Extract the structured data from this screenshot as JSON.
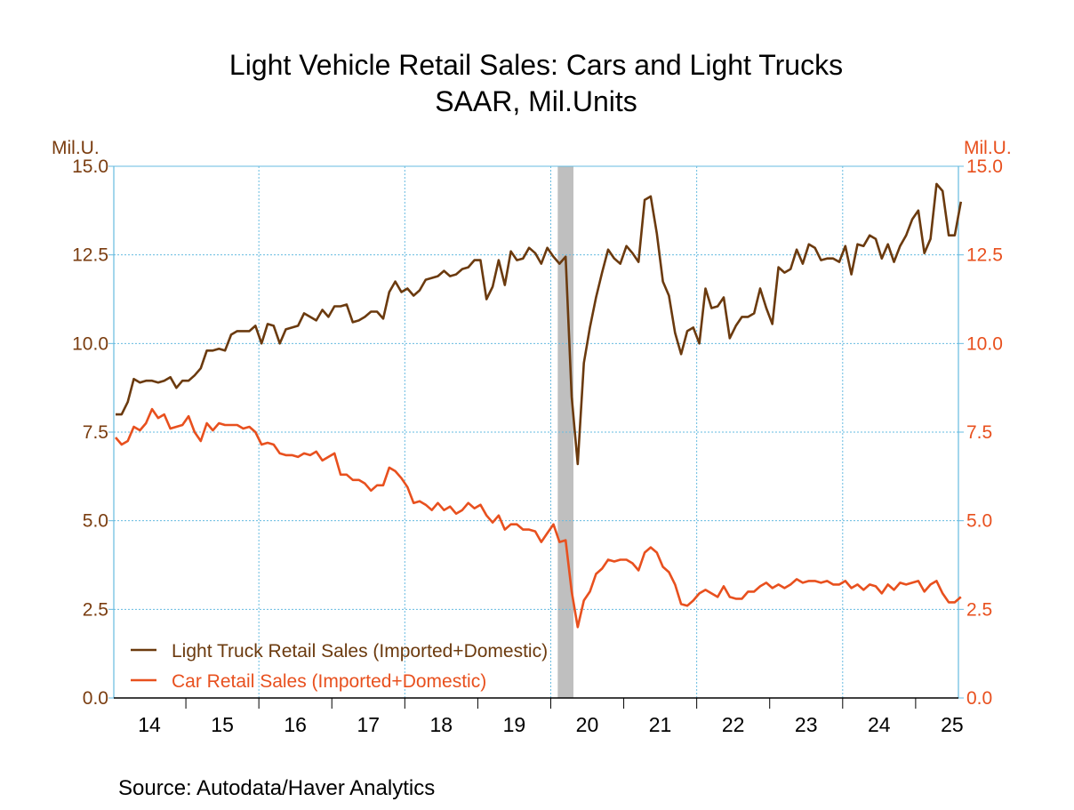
{
  "chart_data": {
    "type": "line",
    "title": "Light Vehicle Retail Sales: Cars and Light Trucks",
    "subtitle": "SAAR, Mil.Units",
    "left_axis_label": "Mil.U.",
    "right_axis_label": "Mil.U.",
    "source": "Source:  Autodata/Haver Analytics",
    "ylim": [
      0,
      15
    ],
    "y_ticks": [
      "0.0",
      "2.5",
      "5.0",
      "7.5",
      "10.0",
      "12.5",
      "15.0"
    ],
    "x_tick_labels": [
      "14",
      "15",
      "16",
      "17",
      "18",
      "19",
      "20",
      "21",
      "22",
      "23",
      "24",
      "25"
    ],
    "x_start_year": 2014,
    "grid": true,
    "legend_position": "bottom-left",
    "recession_shading": {
      "from": "2020-02",
      "to": "2020-04"
    },
    "colors": {
      "truck": "#6b3a0e",
      "car": "#e8501e",
      "left_axis": "#7a3d10",
      "right_axis": "#e8501e",
      "grid": "#66bbe0",
      "recession": "#bfbfbf"
    },
    "series": [
      {
        "name": "Light Truck Retail Sales (Imported+Domestic)",
        "key": "truck",
        "values": [
          8.0,
          8.0,
          8.35,
          9.0,
          8.9,
          8.95,
          8.95,
          8.9,
          8.95,
          9.05,
          8.75,
          8.95,
          8.95,
          9.1,
          9.3,
          9.8,
          9.8,
          9.85,
          9.8,
          10.25,
          10.35,
          10.35,
          10.35,
          10.5,
          10.0,
          10.55,
          10.5,
          10.0,
          10.4,
          10.45,
          10.5,
          10.85,
          10.75,
          10.65,
          10.95,
          10.75,
          11.05,
          11.05,
          11.1,
          10.6,
          10.65,
          10.75,
          10.9,
          10.9,
          10.7,
          11.45,
          11.75,
          11.45,
          11.55,
          11.35,
          11.5,
          11.8,
          11.85,
          11.9,
          12.05,
          11.9,
          11.95,
          12.1,
          12.15,
          12.35,
          12.35,
          11.25,
          11.6,
          12.35,
          11.65,
          12.6,
          12.35,
          12.4,
          12.7,
          12.55,
          12.25,
          12.7,
          12.45,
          12.25,
          12.45,
          8.5,
          6.6,
          9.45,
          10.45,
          11.3,
          12.0,
          12.65,
          12.4,
          12.25,
          12.75,
          12.55,
          12.3,
          14.05,
          14.15,
          13.1,
          11.75,
          11.35,
          10.3,
          9.7,
          10.35,
          10.45,
          10.0,
          11.55,
          11.0,
          11.05,
          11.3,
          10.15,
          10.5,
          10.75,
          10.75,
          10.85,
          11.55,
          11.0,
          10.55,
          12.15,
          12.0,
          12.1,
          12.65,
          12.25,
          12.8,
          12.7,
          12.35,
          12.4,
          12.4,
          12.3,
          12.75,
          11.95,
          12.8,
          12.75,
          13.05,
          12.95,
          12.4,
          12.8,
          12.3,
          12.75,
          13.05,
          13.5,
          13.75,
          12.55,
          12.95,
          14.5,
          14.3,
          13.05,
          13.05,
          14.0
        ]
      },
      {
        "name": "Car Retail Sales (Imported+Domestic)",
        "key": "car",
        "values": [
          7.35,
          7.15,
          7.25,
          7.65,
          7.55,
          7.75,
          8.15,
          7.9,
          8.0,
          7.6,
          7.65,
          7.7,
          7.95,
          7.5,
          7.25,
          7.75,
          7.55,
          7.75,
          7.7,
          7.7,
          7.7,
          7.6,
          7.65,
          7.5,
          7.15,
          7.2,
          7.15,
          6.9,
          6.85,
          6.85,
          6.8,
          6.9,
          6.85,
          6.95,
          6.7,
          6.8,
          6.9,
          6.3,
          6.3,
          6.15,
          6.15,
          6.05,
          5.85,
          6.0,
          6.0,
          6.5,
          6.4,
          6.2,
          5.95,
          5.5,
          5.55,
          5.45,
          5.3,
          5.5,
          5.3,
          5.4,
          5.2,
          5.3,
          5.5,
          5.35,
          5.45,
          5.15,
          4.95,
          5.15,
          4.75,
          4.9,
          4.9,
          4.75,
          4.75,
          4.7,
          4.4,
          4.65,
          4.9,
          4.4,
          4.45,
          3.0,
          2.0,
          2.75,
          3.0,
          3.5,
          3.65,
          3.9,
          3.85,
          3.9,
          3.9,
          3.8,
          3.6,
          4.1,
          4.25,
          4.1,
          3.7,
          3.55,
          3.2,
          2.65,
          2.6,
          2.75,
          2.95,
          3.05,
          2.95,
          2.85,
          3.15,
          2.85,
          2.8,
          2.8,
          3.0,
          3.0,
          3.15,
          3.25,
          3.1,
          3.2,
          3.1,
          3.2,
          3.35,
          3.25,
          3.3,
          3.3,
          3.25,
          3.3,
          3.2,
          3.2,
          3.3,
          3.1,
          3.2,
          3.05,
          3.2,
          3.15,
          2.95,
          3.2,
          3.05,
          3.25,
          3.2,
          3.25,
          3.3,
          3.0,
          3.2,
          3.3,
          2.95,
          2.7,
          2.7,
          2.85
        ]
      }
    ]
  }
}
